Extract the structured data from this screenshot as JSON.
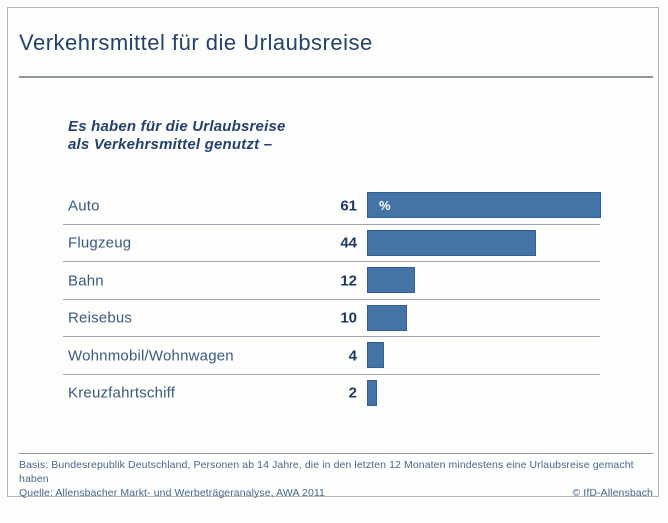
{
  "title": "Verkehrsmittel für die Urlaubsreise",
  "subtitle": {
    "line1": "Es haben für die Urlaubsreise",
    "line2": "als Verkehrsmittel genutzt –"
  },
  "footer": {
    "basis": "Basis: Bundesrepublik Deutschland, Personen ab 14 Jahre, die in den letzten 12 Monaten mindestens eine Urlaubsreise gemacht haben",
    "quelle": "Quelle: Allensbacher Markt- und Werbeträgeranalyse, AWA 2011",
    "copyright": "© IfD-Allensbach"
  },
  "colors": {
    "bar_fill": "#4473a6",
    "bar_border": "#315e93",
    "title_text": "#24426b",
    "label_text": "#3b5a80",
    "value_text": "#1d3a61",
    "divider": "#9ba6b0",
    "frame_border": "#b2b6ba",
    "footer_text": "#47688e"
  },
  "chart_data": {
    "type": "bar",
    "orientation": "horizontal",
    "title": "Verkehrsmittel für die Urlaubsreise",
    "subtitle": "Es haben für die Urlaubsreise als Verkehrsmittel genutzt –",
    "unit": "%",
    "unit_label_on_first_bar": "%",
    "categories": [
      "Auto",
      "Flugzeug",
      "Bahn",
      "Reisebus",
      "Wohnmobil/Wohnwagen",
      "Kreuzfahrtschiff"
    ],
    "values": [
      61,
      44,
      12,
      10,
      4,
      2
    ],
    "xlim": [
      0,
      61
    ],
    "grid": false,
    "legend": false,
    "value_labels_position": "left-of-bar"
  }
}
